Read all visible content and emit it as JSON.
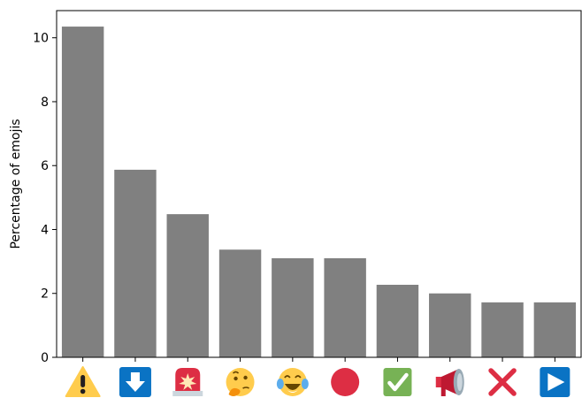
{
  "chart_data": {
    "type": "bar",
    "title": "",
    "xlabel": "",
    "ylabel": "Percentage of emojis",
    "ylim": [
      0,
      10.85
    ],
    "yticks": [
      0,
      2,
      4,
      6,
      8,
      10
    ],
    "grid": false,
    "categories": [
      {
        "icon": "warning-icon"
      },
      {
        "icon": "down-arrow-button-icon"
      },
      {
        "icon": "police-light-icon"
      },
      {
        "icon": "thinking-face-icon"
      },
      {
        "icon": "tears-of-joy-face-icon"
      },
      {
        "icon": "red-circle-icon"
      },
      {
        "icon": "check-mark-button-icon"
      },
      {
        "icon": "megaphone-icon"
      },
      {
        "icon": "cross-mark-icon"
      },
      {
        "icon": "play-button-icon"
      }
    ],
    "values": [
      10.35,
      5.87,
      4.48,
      3.37,
      3.1,
      3.1,
      2.27,
      2.0,
      1.72,
      1.72
    ],
    "bar_color": "#808080"
  }
}
